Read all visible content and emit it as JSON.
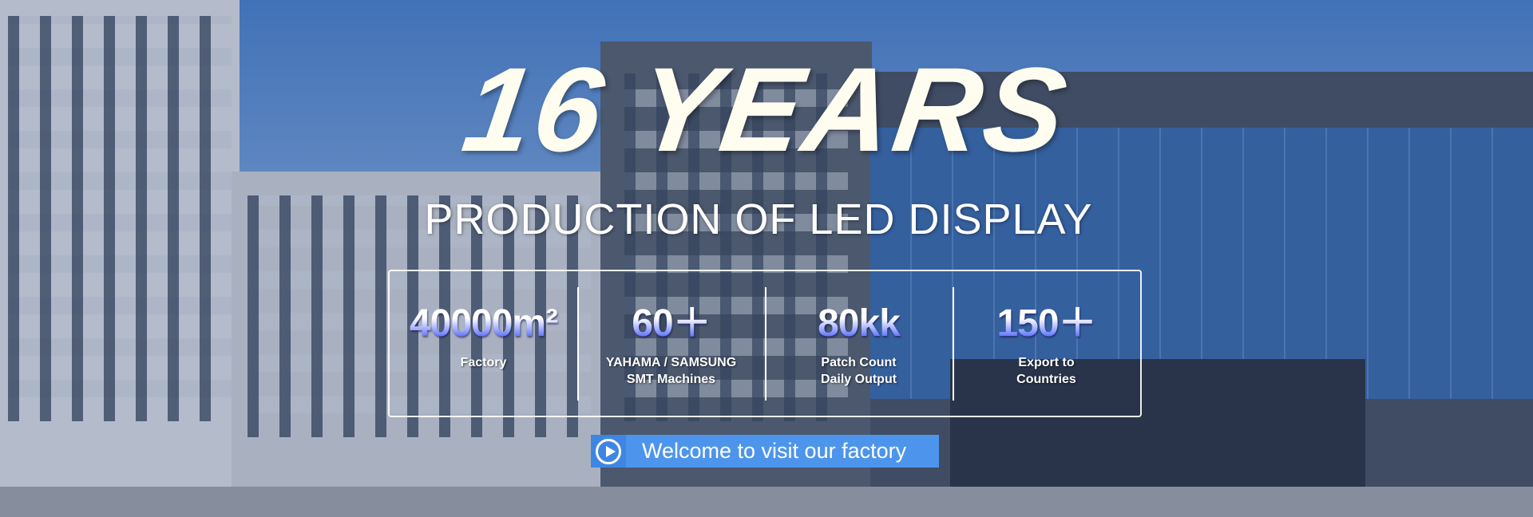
{
  "banner": {
    "title": "16 YEARS",
    "subtitle": "PRODUCTION OF LED DISPLAY",
    "stats": [
      {
        "value": "40000m²",
        "label_lines": [
          "Factory"
        ]
      },
      {
        "value": "60＋",
        "label_lines": [
          "YAHAMA / SAMSUNG",
          "SMT Machines"
        ]
      },
      {
        "value": "80kk",
        "label_lines": [
          "Patch Count",
          "Daily Output"
        ]
      },
      {
        "value": "150＋",
        "label_lines": [
          "Export to",
          "Countries"
        ]
      }
    ],
    "cta": {
      "label": "Welcome to visit our factory",
      "icon": "play-circle-icon",
      "color": "#4d95ec"
    }
  }
}
